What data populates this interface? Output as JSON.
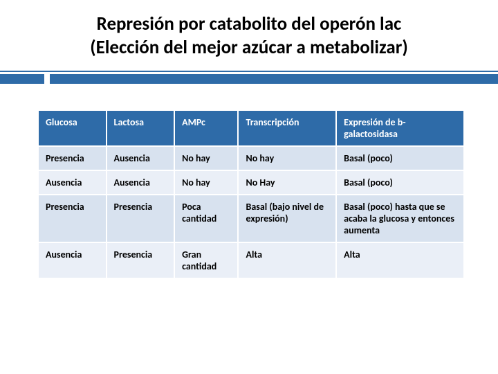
{
  "title": {
    "line1": "Represión por catabolito del operón lac",
    "line2": "(Elección del mejor azúcar a metabolizar)",
    "fontsize": 27,
    "color": "#000000"
  },
  "decor": {
    "line_color": "#2e6ba8",
    "bar_color": "#2e6ba8"
  },
  "table": {
    "type": "table",
    "header_bg": "#2e6ba8",
    "header_fg": "#ffffff",
    "row_odd_bg": "#d8e2ef",
    "row_even_bg": "#eaeff7",
    "cell_fg": "#000000",
    "border_color": "#ffffff",
    "fontsize": 14,
    "col_widths_pct": [
      16,
      16,
      15,
      23,
      30
    ],
    "columns": [
      "Glucosa",
      "Lactosa",
      "AMPc",
      "Transcripción",
      "Expresión de b-galactosidasa"
    ],
    "rows": [
      [
        "Presencia",
        "Ausencia",
        "No hay",
        "No hay",
        "Basal (poco)"
      ],
      [
        "Ausencia",
        "Ausencia",
        "No hay",
        "No Hay",
        "Basal (poco)"
      ],
      [
        "Presencia",
        "Presencia",
        "Poca cantidad",
        "Basal\n(bajo nivel de expresión)",
        "Basal (poco) hasta que se acaba la glucosa y entonces aumenta"
      ],
      [
        "Ausencia",
        "Presencia",
        "Gran cantidad",
        "Alta",
        "Alta"
      ]
    ]
  }
}
